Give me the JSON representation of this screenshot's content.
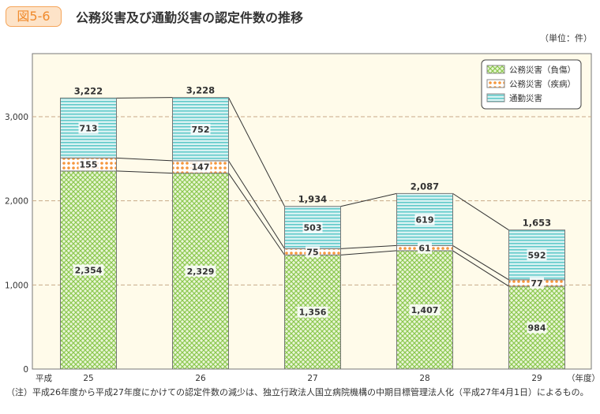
{
  "header": {
    "badge": "図5-6",
    "title": "公務災害及び通勤災害の認定件数の推移",
    "unit": "（単位：件）"
  },
  "chart_data": {
    "type": "bar",
    "stacked": true,
    "categories": [
      "25",
      "26",
      "27",
      "28",
      "29"
    ],
    "x_prefix": "平成",
    "xlabel": "（年度）",
    "ylabel": "",
    "ylim": [
      0,
      3800
    ],
    "yticks": [
      0,
      1000,
      2000,
      3000
    ],
    "ytick_labels": [
      "0",
      "1,000",
      "2,000",
      "3,000"
    ],
    "grid": "horizontal-dashed",
    "legend_position": "top-right",
    "series": [
      {
        "name": "公務災害（負傷）",
        "values": [
          2354,
          2329,
          1356,
          1407,
          984
        ],
        "labels": [
          "2,354",
          "2,329",
          "1,356",
          "1,407",
          "984"
        ],
        "color": "#8cc850"
      },
      {
        "name": "公務災害（疾病）",
        "values": [
          155,
          147,
          75,
          61,
          77
        ],
        "labels": [
          "155",
          "147",
          "75",
          "61",
          "77"
        ],
        "color": "#f5963c"
      },
      {
        "name": "通勤災害",
        "values": [
          713,
          752,
          503,
          619,
          592
        ],
        "labels": [
          "713",
          "752",
          "503",
          "619",
          "592"
        ],
        "color": "#5cc8c8"
      }
    ],
    "totals": [
      3222,
      3228,
      1934,
      2087,
      1653
    ],
    "total_labels": [
      "3,222",
      "3,228",
      "1,934",
      "2,087",
      "1,653"
    ]
  },
  "footnote": "（注）平成26年度から平成27年度にかけての認定件数の減少は、独立行政法人国立病院機構の中期目標管理法人化（平成27年4月1日）によるもの。"
}
